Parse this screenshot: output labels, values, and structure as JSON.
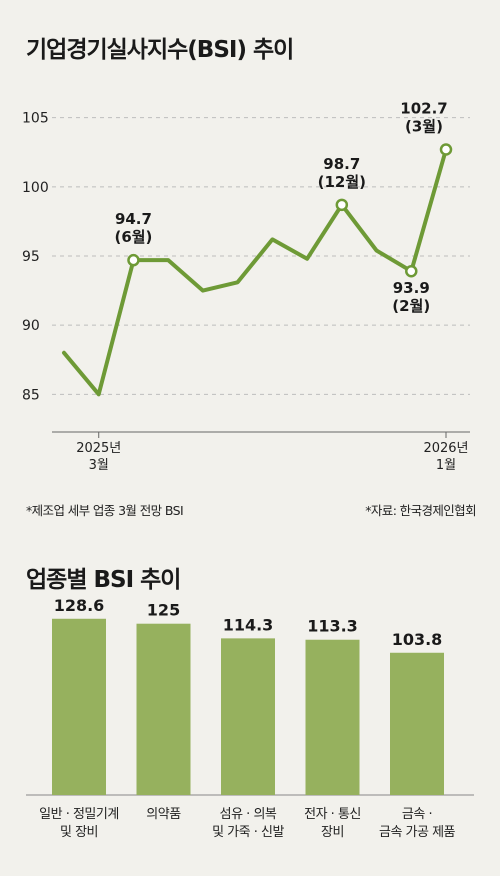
{
  "title_line": "기업경기실사지수(BSI) 추이",
  "title_bar": "업종별 BSI 추이",
  "note_left": "*제조업 세부 업종 3월 전망 BSI",
  "note_right": "*자료: 한국경제인협회",
  "colors": {
    "line": "#6e9a36",
    "bar": "#96b15e",
    "grid": "#bdbdbd",
    "background": "#f2f1ec"
  },
  "chart_data": [
    {
      "type": "line",
      "title": "기업경기실사지수(BSI) 추이",
      "ylim": [
        83,
        107
      ],
      "yticks": [
        85,
        90,
        95,
        100,
        105
      ],
      "grid": true,
      "x_tick_labels": [
        {
          "index": 1,
          "lines": [
            "2025년",
            "3월"
          ]
        },
        {
          "index": 11,
          "lines": [
            "2026년",
            "1월"
          ]
        }
      ],
      "series": [
        {
          "values": [
            88.0,
            85.0,
            94.7,
            94.7,
            92.5,
            93.1,
            96.2,
            94.8,
            98.7,
            95.4,
            93.9,
            102.7
          ]
        }
      ],
      "annotations": [
        {
          "index": 2,
          "lines": [
            "94.7",
            "(6월)"
          ],
          "position": "above"
        },
        {
          "index": 8,
          "lines": [
            "98.7",
            "(12월)"
          ],
          "position": "above"
        },
        {
          "index": 10,
          "lines": [
            "93.9",
            "(2월)"
          ],
          "position": "below"
        },
        {
          "index": 11,
          "lines": [
            "102.7",
            "(3월)"
          ],
          "position": "above"
        }
      ]
    },
    {
      "type": "bar",
      "title": "업종별 BSI 추이",
      "ylim": [
        0,
        135
      ],
      "values": [
        128.6,
        125,
        114.3,
        113.3,
        103.8
      ],
      "value_labels": [
        "128.6",
        "125",
        "114.3",
        "113.3",
        "103.8"
      ],
      "categories": [
        [
          "일반 · 정밀기계",
          "및 장비"
        ],
        [
          "의약품"
        ],
        [
          "섬유 · 의복",
          "및 가죽 · 신발"
        ],
        [
          "전자 · 통신",
          "장비"
        ],
        [
          "금속 ·",
          "금속 가공 제품"
        ]
      ]
    }
  ]
}
